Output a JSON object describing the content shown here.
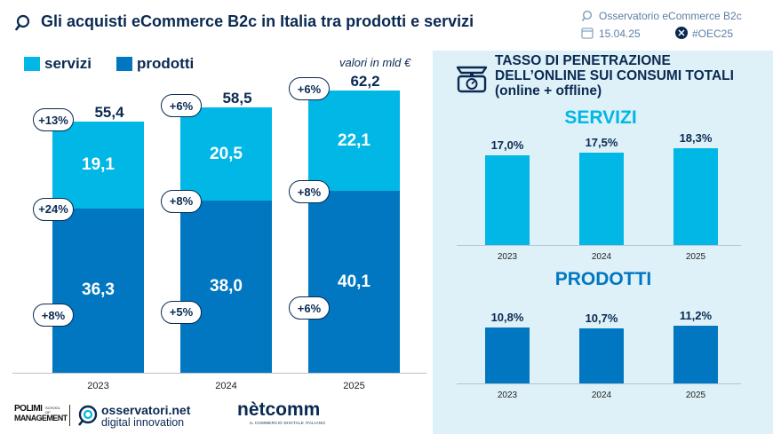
{
  "header": {
    "title": "Gli acquisti eCommerce B2c in Italia tra prodotti e servizi",
    "event": "Osservatorio eCommerce B2c",
    "date": "15.04.25",
    "hashtag": "#OEC25"
  },
  "legend": {
    "servizi": "servizi",
    "prodotti": "prodotti"
  },
  "note": "valori in mld €",
  "colors": {
    "servizi": "#00b7e6",
    "prodotti": "#0077c0",
    "navy": "#0a2a52",
    "panel": "#dff1f8"
  },
  "chart_data": [
    {
      "type": "bar",
      "stacked": true,
      "categories": [
        "2023",
        "2024",
        "2025"
      ],
      "series": [
        {
          "name": "prodotti",
          "values": [
            36.3,
            38.0,
            40.1
          ],
          "labels": [
            "36,3",
            "38,0",
            "40,1"
          ],
          "growth": [
            "+8%",
            "+5%",
            "+6%"
          ]
        },
        {
          "name": "servizi",
          "values": [
            19.1,
            20.5,
            22.1
          ],
          "labels": [
            "19,1",
            "20,5",
            "22,1"
          ],
          "growth": [
            "+24%",
            "+8%",
            "+8%"
          ]
        }
      ],
      "totals": [
        "55,4",
        "58,5",
        "62,2"
      ],
      "total_growth": [
        "+13%",
        "+6%",
        "+6%"
      ],
      "ylim": [
        0,
        65
      ],
      "unit": "valori in mld €"
    },
    {
      "type": "bar",
      "title": "SERVIZI",
      "categories": [
        "2023",
        "2024",
        "2025"
      ],
      "values": [
        17.0,
        17.5,
        18.3
      ],
      "labels": [
        "17,0%",
        "17,5%",
        "18,3%"
      ],
      "ylim": [
        0,
        30
      ]
    },
    {
      "type": "bar",
      "title": "PRODOTTI",
      "categories": [
        "2023",
        "2024",
        "2025"
      ],
      "values": [
        10.8,
        10.7,
        11.2
      ],
      "labels": [
        "10,8%",
        "10,7%",
        "11,2%"
      ],
      "ylim": [
        0,
        20
      ]
    }
  ],
  "right_panel": {
    "title": "TASSO DI PENETRAZIONE DELL’ONLINE SUI CONSUMI TOTALI (online + offline)",
    "servizi_title": "SERVIZI",
    "prodotti_title": "PRODOTTI"
  },
  "footer": {
    "polimi_line1": "POLIMI",
    "polimi_line2": "MANAGEMENT",
    "polimi_small": "SCHOOL OF",
    "osservatori_line1": "osservatori.net",
    "osservatori_line2": "digital innovation",
    "netcomm": "nètcomm",
    "netcomm_sub": "IL COMMERCIO DIGITALE ITALIANO"
  }
}
